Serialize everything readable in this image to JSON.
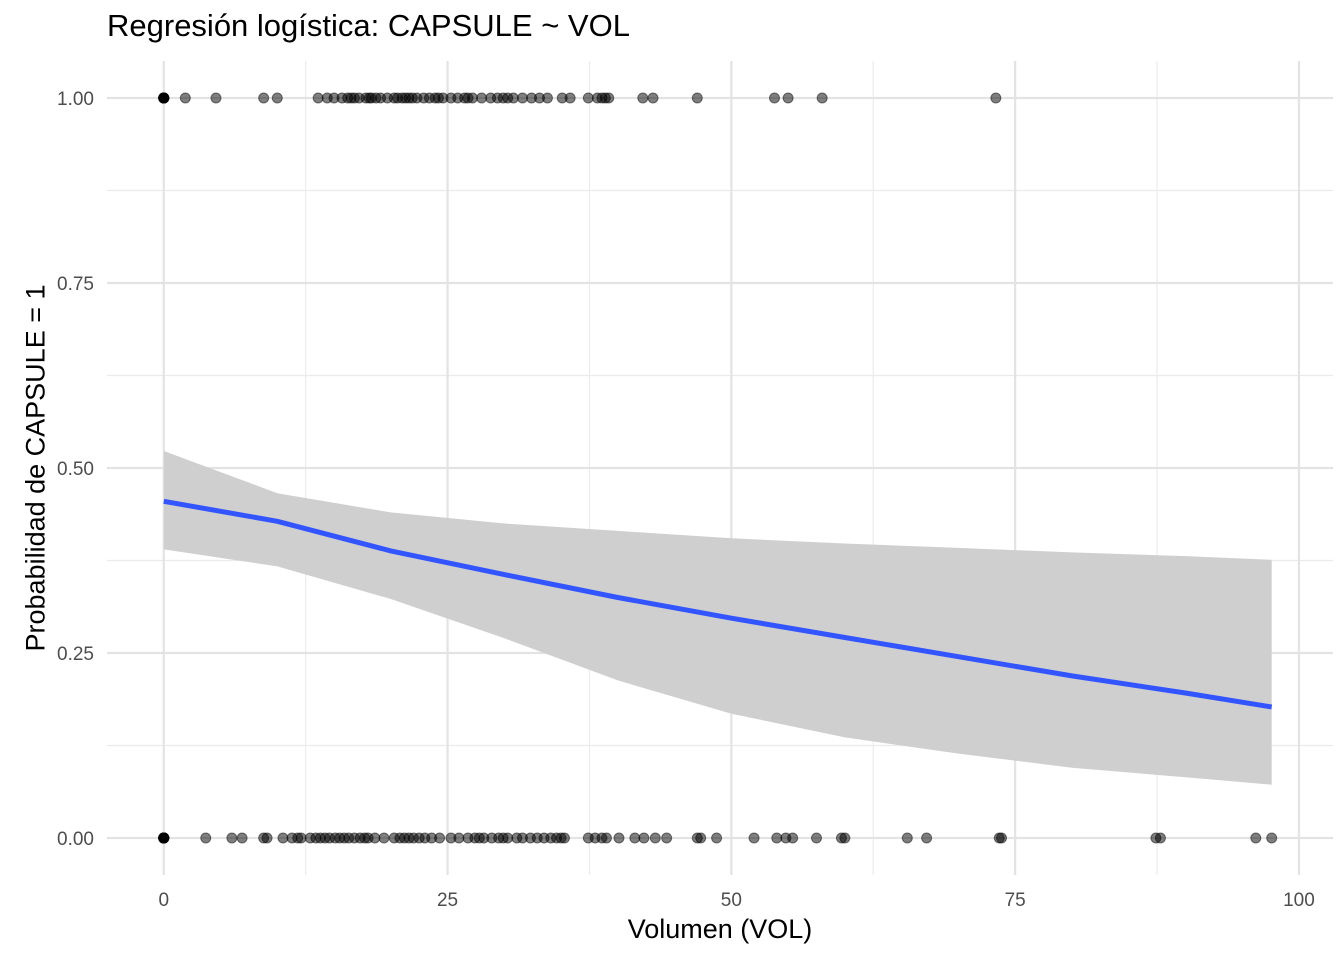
{
  "chart_data": {
    "type": "scatter",
    "title": "Regresión logística: CAPSULE ~ VOL",
    "xlabel": "Volumen (VOL)",
    "ylabel": "Probabilidad de CAPSULE = 1",
    "xlim": [
      -5,
      103
    ],
    "ylim": [
      -0.05,
      1.05
    ],
    "x_ticks": [
      0,
      25,
      50,
      75,
      100
    ],
    "x_tick_labels": [
      "0",
      "25",
      "50",
      "75",
      "100"
    ],
    "y_ticks": [
      0,
      0.25,
      0.5,
      0.75,
      1.0
    ],
    "y_tick_labels": [
      "0.00",
      "0.25",
      "0.50",
      "0.75",
      "1.00"
    ],
    "grid": true,
    "point_color": "#000000",
    "line_color": "#3355ff",
    "band_color": "#cfcfcf",
    "series": [
      {
        "points_y1": [
          0,
          0,
          0,
          0,
          0,
          0,
          0,
          0,
          1.9,
          4.6,
          8.8,
          10.0,
          13.6,
          14.4,
          15.0,
          15.7,
          16.2,
          16.5,
          16.8,
          17.2,
          17.8,
          18.1,
          18.3,
          18.7,
          19.1,
          19.7,
          20.3,
          20.6,
          21.0,
          21.3,
          21.6,
          21.9,
          22.3,
          22.9,
          23.4,
          23.9,
          24.2,
          24.6,
          25.3,
          25.9,
          26.5,
          26.8,
          27.2,
          28.0,
          28.8,
          29.4,
          29.9,
          30.3,
          30.8,
          31.6,
          32.4,
          33.1,
          33.8,
          35.1,
          35.8,
          37.4,
          38.2,
          38.6,
          38.9,
          39.2,
          42.2,
          43.1,
          47.0,
          53.8,
          55.0,
          58.0,
          73.3
        ],
        "points_y0": [
          0,
          0,
          0,
          0,
          0,
          0,
          0,
          0,
          0,
          0,
          3.7,
          6.0,
          6.9,
          8.8,
          9.1,
          10.5,
          11.3,
          11.8,
          12.1,
          12.9,
          13.4,
          13.8,
          14.2,
          14.6,
          15.1,
          15.5,
          15.9,
          16.3,
          16.8,
          17.3,
          17.7,
          18.0,
          18.6,
          19.4,
          20.3,
          20.8,
          21.2,
          21.6,
          22.0,
          22.5,
          23.0,
          23.6,
          24.3,
          25.3,
          26.0,
          26.8,
          27.4,
          27.8,
          28.2,
          28.9,
          29.5,
          29.9,
          30.3,
          31.1,
          31.6,
          32.3,
          32.9,
          33.5,
          34.1,
          34.6,
          35.0,
          35.3,
          37.4,
          38.0,
          38.6,
          39.0,
          40.1,
          41.5,
          42.3,
          43.3,
          44.3,
          47.0,
          47.3,
          48.7,
          52.0,
          54.0,
          54.8,
          55.4,
          57.5,
          59.7,
          60.0,
          65.5,
          67.2,
          73.6,
          73.8,
          87.4,
          87.8,
          96.2,
          97.6
        ],
        "fit_x": [
          0,
          10,
          20,
          30,
          40,
          50,
          60,
          70,
          80,
          90,
          97.6
        ],
        "fit_y": [
          0.455,
          0.428,
          0.388,
          0.356,
          0.325,
          0.297,
          0.271,
          0.245,
          0.219,
          0.196,
          0.177
        ],
        "band_low": [
          0.39,
          0.367,
          0.323,
          0.27,
          0.213,
          0.168,
          0.136,
          0.114,
          0.095,
          0.082,
          0.072
        ],
        "band_high": [
          0.523,
          0.466,
          0.44,
          0.425,
          0.415,
          0.405,
          0.398,
          0.392,
          0.386,
          0.381,
          0.376
        ]
      }
    ]
  }
}
